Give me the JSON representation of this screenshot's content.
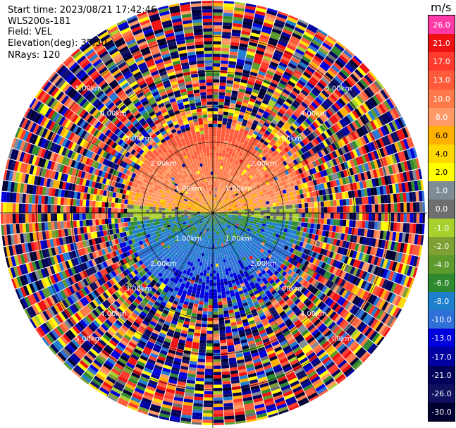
{
  "header": {
    "start_time": "Start time: 2023/08/21 17:42:46",
    "instrument": "WLS200s-181",
    "field": "Field: VEL",
    "elevation": "Elevation(deg): 35.30",
    "nrays": "NRays: 120"
  },
  "colorbar": {
    "unit": "m/s",
    "levels": [
      {
        "label": "26.0",
        "color": "#ff3aa6"
      },
      {
        "label": "21.0",
        "color": "#ee1111"
      },
      {
        "label": "17.0",
        "color": "#ff3b2e"
      },
      {
        "label": "13.0",
        "color": "#ff5a3a"
      },
      {
        "label": "10.0",
        "color": "#ff7a4a"
      },
      {
        "label": "8.0",
        "color": "#ff9a66"
      },
      {
        "label": "6.0",
        "color": "#ffb000"
      },
      {
        "label": "4.0",
        "color": "#ffd800"
      },
      {
        "label": "2.0",
        "color": "#ffff00"
      },
      {
        "label": "1.0",
        "color": "#7f8c96"
      },
      {
        "label": "0.0",
        "color": "#6f6f6f"
      },
      {
        "label": "-1.0",
        "color": "#a8d12e"
      },
      {
        "label": "-2.0",
        "color": "#7fa033"
      },
      {
        "label": "-4.0",
        "color": "#5c9a2c"
      },
      {
        "label": "-6.0",
        "color": "#2f8a2f"
      },
      {
        "label": "-8.0",
        "color": "#1e7fcc"
      },
      {
        "label": "-10.0",
        "color": "#2e6fd8"
      },
      {
        "label": "-13.0",
        "color": "#0000dd"
      },
      {
        "label": "-17.0",
        "color": "#0000a0"
      },
      {
        "label": "-21.0",
        "color": "#00005a"
      },
      {
        "label": "-26.0",
        "color": "#101060"
      },
      {
        "label": "-30.0",
        "color": "#000030"
      }
    ]
  },
  "chart_data": {
    "type": "heatmap",
    "projection": "polar PPI",
    "field": "VEL",
    "rays": 120,
    "range_rings_km": [
      1.0,
      2.0,
      3.0,
      4.0,
      5.0
    ],
    "max_range_km": 6.0,
    "ring_labels": [
      "1.00km",
      "2.00km",
      "3.00km",
      "4.00km",
      "5.00km"
    ],
    "sector_spokes_deg": [
      0,
      30,
      60,
      90,
      120,
      150,
      180,
      210,
      240,
      270,
      300,
      330
    ],
    "coherent_range_km": 2.5,
    "north_sector": {
      "azimuth_span_deg": [
        -80,
        80
      ],
      "velocity_range_ms": [
        2.0,
        17.0
      ]
    },
    "south_sector": {
      "azimuth_span_deg": [
        100,
        260
      ],
      "velocity_range_ms": [
        -13.0,
        -1.0
      ]
    },
    "beyond_coherent_range": "noise across full velocity scale"
  }
}
